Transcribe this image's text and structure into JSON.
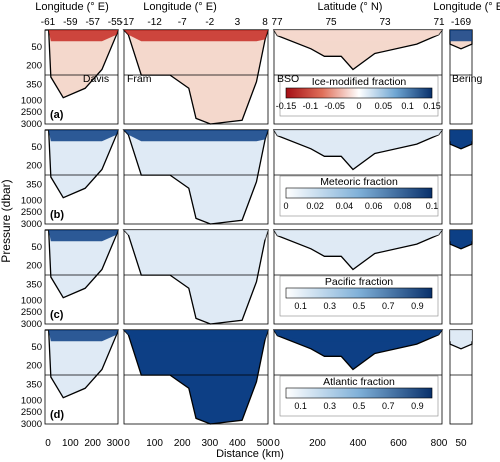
{
  "figure": {
    "top_axes": [
      {
        "label": "Longitude (° E)",
        "ticks": [
          "-61",
          "-59",
          "-57",
          "-55"
        ]
      },
      {
        "label": "Longitude (° E)",
        "ticks": [
          "-17",
          "-12",
          "-7",
          "-2",
          "3",
          "8"
        ]
      },
      {
        "label": "Latitude (° N)",
        "ticks": [
          "77",
          "75",
          "73",
          "71"
        ]
      },
      {
        "label": "Longitude (° E)",
        "ticks": [
          "-169"
        ]
      }
    ],
    "bottom_axes": [
      {
        "ticks": [
          "0",
          "100",
          "200",
          "300"
        ]
      },
      {
        "ticks": [
          "0",
          "100",
          "200",
          "300",
          "400",
          "500"
        ]
      },
      {
        "ticks": [
          "0",
          "200",
          "400",
          "600",
          "800"
        ]
      },
      {
        "ticks": [
          "50"
        ]
      }
    ],
    "x_label": "Distance (km)",
    "y_label": "Pressure (dbar)",
    "y_ticks": [
      "50",
      "200",
      "350",
      "500",
      "1000",
      "1500",
      "2000",
      "2500",
      "3000"
    ],
    "section_names": [
      "Davis",
      "Fram",
      "BSO",
      "Bering"
    ],
    "rows": [
      {
        "letter": "(a)",
        "title": "Ice-modified fraction",
        "ticks": [
          "-0.15",
          "-0.1",
          "-0.05",
          "0",
          "0.05",
          "0.1",
          "0.15"
        ],
        "type": "diverging"
      },
      {
        "letter": "(b)",
        "title": "Meteoric fraction",
        "ticks": [
          "0",
          "0.02",
          "0.04",
          "0.06",
          "0.08",
          "0.1"
        ],
        "type": "blue"
      },
      {
        "letter": "(c)",
        "title": "Pacific fraction",
        "ticks": [
          "0.1",
          "0.3",
          "0.5",
          "0.7",
          "0.9"
        ],
        "type": "blue"
      },
      {
        "letter": "(d)",
        "title": "Atlantic fraction",
        "ticks": [
          "0.1",
          "0.3",
          "0.5",
          "0.7",
          "0.9"
        ],
        "type": "blue"
      }
    ],
    "colors": {
      "deep_blue": "#0d3f85",
      "light_blue": "#dfeaf5",
      "red": "#c62b23",
      "light_red": "#f4d8cc",
      "line": "#000000"
    }
  },
  "chart_data": {
    "type": "heatmap",
    "panels": [
      "Davis Strait",
      "Fram Strait",
      "BSO",
      "Bering Strait"
    ],
    "variables": [
      "Ice-modified fraction",
      "Meteoric fraction",
      "Pacific fraction",
      "Atlantic fraction"
    ],
    "pressure_range_dbar": [
      0,
      3000
    ],
    "distance_ranges_km": [
      [
        0,
        300
      ],
      [
        0,
        560
      ],
      [
        0,
        800
      ],
      [
        0,
        70
      ]
    ],
    "colorbar_ranges": [
      [
        -0.15,
        0.15
      ],
      [
        0,
        0.1
      ],
      [
        0,
        1
      ],
      [
        0,
        1
      ]
    ],
    "depth_scale": "upper 500 dbar expanded, 500-3000 dbar compressed"
  }
}
